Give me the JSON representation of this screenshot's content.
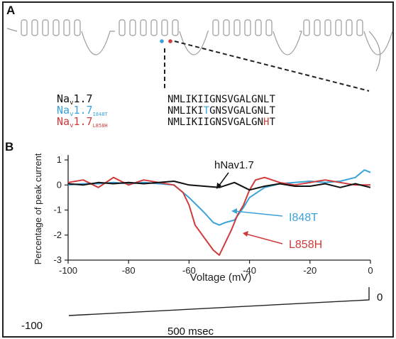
{
  "panel_a": {
    "label": "A",
    "variants": [
      {
        "name": "Na",
        "sub": "v",
        "rest": "1.7",
        "suffix": "",
        "color": "#111111",
        "sequence": "NMLIKIIGNSVGALGNLT",
        "highlight_index": -1
      },
      {
        "name": "Na",
        "sub": "v",
        "rest": "1.7",
        "suffix": "I848T",
        "color": "#3ba3d8",
        "sequence": "NMLIKITGNSVGALGNLT",
        "highlight_index": 6
      },
      {
        "name": "Na",
        "sub": "v",
        "rest": "1.7",
        "suffix": "L858H",
        "color": "#cf3b3b",
        "sequence": "NMLIKIIGNSVGALGNHT",
        "highlight_index": 16
      }
    ]
  },
  "panel_b": {
    "label": "B",
    "ylabel": "Percentage of peak current",
    "xlabel": "Voltage (mV)",
    "annotations": [
      {
        "text": "hNav1.7",
        "color": "#111111"
      },
      {
        "text": "I848T",
        "color": "#3ba3d8"
      },
      {
        "text": "L858H",
        "color": "#cf3b3b"
      }
    ],
    "protocol": {
      "start_label": "-100",
      "end_label": "0",
      "duration_label": "500 msec"
    }
  },
  "chart_data": {
    "type": "line",
    "xlabel": "Voltage (mV)",
    "ylabel": "Percentage of peak current",
    "xlim": [
      -100,
      0
    ],
    "ylim": [
      -3,
      1.2
    ],
    "xticks": [
      -100,
      -80,
      -60,
      -40,
      -20,
      0
    ],
    "yticks": [
      1,
      0,
      -1,
      -2,
      -3
    ],
    "grid": false,
    "series": [
      {
        "name": "hNav1.7",
        "color": "#111111",
        "x": [
          -100,
          -95,
          -90,
          -85,
          -80,
          -75,
          -70,
          -65,
          -60,
          -55,
          -50,
          -45,
          -40,
          -35,
          -30,
          -25,
          -20,
          -15,
          -10,
          -5,
          0
        ],
        "y": [
          0.05,
          0.0,
          0.1,
          0.05,
          0.1,
          0.05,
          0.1,
          0.15,
          0.0,
          -0.05,
          -0.1,
          0.1,
          -0.2,
          -0.05,
          0.05,
          -0.05,
          -0.05,
          0.05,
          -0.1,
          0.05,
          -0.1
        ]
      },
      {
        "name": "I848T",
        "color": "#3ba3d8",
        "x": [
          -100,
          -95,
          -90,
          -85,
          -80,
          -75,
          -70,
          -65,
          -60,
          -55,
          -52,
          -50,
          -48,
          -45,
          -42,
          -40,
          -35,
          -30,
          -25,
          -20,
          -15,
          -10,
          -5,
          -2,
          0
        ],
        "y": [
          0.0,
          0.05,
          0.05,
          0.1,
          0.05,
          0.1,
          0.05,
          0.0,
          -0.5,
          -1.1,
          -1.5,
          -1.6,
          -1.5,
          -1.4,
          -0.9,
          -0.5,
          -0.1,
          0.05,
          0.1,
          0.15,
          0.1,
          0.15,
          0.3,
          0.6,
          0.5
        ]
      },
      {
        "name": "L858H",
        "color": "#cf3b3b",
        "x": [
          -100,
          -95,
          -90,
          -85,
          -80,
          -75,
          -70,
          -65,
          -62,
          -60,
          -58,
          -55,
          -52,
          -50,
          -48,
          -46,
          -44,
          -42,
          -40,
          -38,
          -35,
          -30,
          -25,
          -20,
          -15,
          -10,
          -5,
          0
        ],
        "y": [
          0.1,
          0.2,
          -0.1,
          0.3,
          0.0,
          0.2,
          0.1,
          0.0,
          -0.3,
          -0.8,
          -1.6,
          -2.1,
          -2.6,
          -2.8,
          -2.3,
          -1.8,
          -1.2,
          -0.8,
          -0.2,
          0.2,
          0.3,
          0.1,
          0.0,
          0.1,
          0.2,
          0.1,
          0.0,
          0.0
        ]
      }
    ]
  }
}
